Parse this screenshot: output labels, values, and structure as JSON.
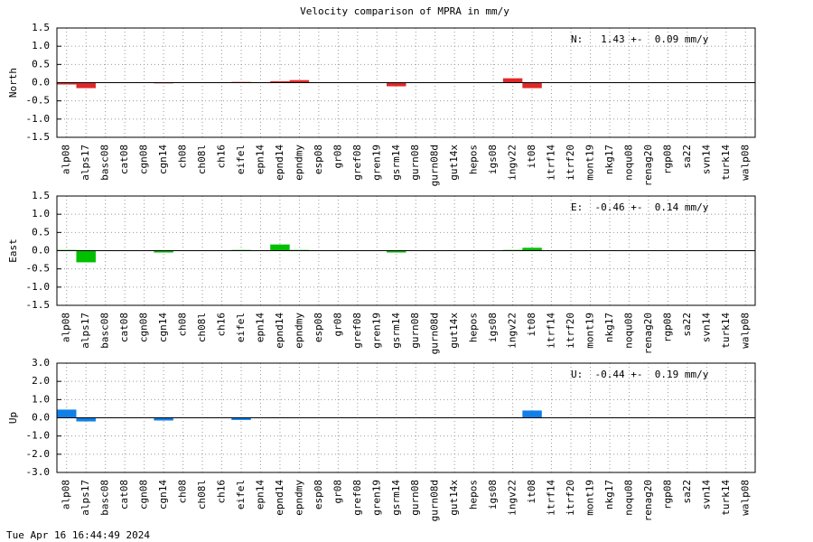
{
  "title": "Velocity comparison of MPRA in mm/y",
  "timestamp": "Tue Apr 16 16:44:49 2024",
  "chart_data": [
    {
      "type": "bar",
      "ylabel": "North",
      "annotation": "N:   1.43 +-  0.09 mm/y",
      "color": "#e02828",
      "grid": true,
      "categories": [
        "alp08",
        "alps17",
        "basc08",
        "cat08",
        "cgn08",
        "cgn14",
        "ch08",
        "ch08l",
        "ch16",
        "eifel",
        "epn14",
        "epnd14",
        "epndmy",
        "esp08",
        "gr08",
        "gref08",
        "gren19",
        "gsrm14",
        "gurn08",
        "gurn08d",
        "gut14x",
        "hepos",
        "igs08",
        "ingv22",
        "it08",
        "itrf14",
        "itrf20",
        "mont19",
        "nkg17",
        "noqu08",
        "renag20",
        "rgp08",
        "sa22",
        "svn14",
        "turk14",
        "walp08"
      ],
      "values": [
        -0.05,
        -0.15,
        0,
        0,
        0,
        -0.02,
        0,
        0,
        0,
        0.02,
        0,
        0.04,
        0.07,
        0,
        0,
        0,
        0,
        -0.1,
        0,
        0,
        0,
        0,
        0,
        0.12,
        -0.15,
        0,
        0,
        0,
        0,
        0,
        0,
        0,
        0,
        0,
        0,
        0
      ],
      "ylim": [
        -1.5,
        1.5
      ],
      "yticks": [
        -1.5,
        {
          "value": -1,
          "label": "-1.0"
        },
        -0.5,
        {
          "value": 0,
          "label": "0.0"
        },
        0.5,
        {
          "value": 1,
          "label": "1.0"
        },
        1.5
      ]
    },
    {
      "type": "bar",
      "ylabel": "East",
      "annotation": "E:  -0.46 +-  0.14 mm/y",
      "color": "#00c000",
      "grid": true,
      "categories": [
        "alp08",
        "alps17",
        "basc08",
        "cat08",
        "cgn08",
        "cgn14",
        "ch08",
        "ch08l",
        "ch16",
        "eifel",
        "epn14",
        "epnd14",
        "epndmy",
        "esp08",
        "gr08",
        "gref08",
        "gren19",
        "gsrm14",
        "gurn08",
        "gurn08d",
        "gut14x",
        "hepos",
        "igs08",
        "ingv22",
        "it08",
        "itrf14",
        "itrf20",
        "mont19",
        "nkg17",
        "noqu08",
        "renag20",
        "rgp08",
        "sa22",
        "svn14",
        "turk14",
        "walp08"
      ],
      "values": [
        0.02,
        -0.32,
        0,
        0,
        0,
        -0.05,
        0,
        0,
        0,
        0.02,
        0,
        0.17,
        0.02,
        0,
        0,
        0,
        0,
        -0.05,
        0,
        0,
        0,
        0,
        0,
        0.02,
        0.08,
        0,
        0,
        0,
        0,
        0,
        0,
        0,
        0,
        0,
        0,
        0
      ],
      "ylim": [
        -1.5,
        1.5
      ],
      "yticks": [
        -1.5,
        {
          "value": -1,
          "label": "-1.0"
        },
        -0.5,
        {
          "value": 0,
          "label": "0.0"
        },
        0.5,
        {
          "value": 1,
          "label": "1.0"
        },
        1.5
      ]
    },
    {
      "type": "bar",
      "ylabel": "Up",
      "annotation": "U:  -0.44 +-  0.19 mm/y",
      "color": "#1080e8",
      "grid": true,
      "categories": [
        "alp08",
        "alps17",
        "basc08",
        "cat08",
        "cgn08",
        "cgn14",
        "ch08",
        "ch08l",
        "ch16",
        "eifel",
        "epn14",
        "epnd14",
        "epndmy",
        "esp08",
        "gr08",
        "gref08",
        "gren19",
        "gsrm14",
        "gurn08",
        "gurn08d",
        "gut14x",
        "hepos",
        "igs08",
        "ingv22",
        "it08",
        "itrf14",
        "itrf20",
        "mont19",
        "nkg17",
        "noqu08",
        "renag20",
        "rgp08",
        "sa22",
        "svn14",
        "turk14",
        "walp08"
      ],
      "values": [
        0.45,
        -0.2,
        0,
        0,
        0,
        -0.15,
        0,
        0,
        0,
        -0.12,
        0,
        0.03,
        0,
        0,
        0,
        0,
        0,
        0,
        0,
        0,
        0,
        0,
        0,
        0.03,
        0.4,
        0,
        0,
        0,
        0,
        0,
        0,
        0,
        0,
        0,
        0,
        0
      ],
      "ylim": [
        -3,
        3
      ],
      "yticks": [
        {
          "value": -3,
          "label": "-3.0"
        },
        {
          "value": -2,
          "label": "-2.0"
        },
        {
          "value": -1,
          "label": "-1.0"
        },
        {
          "value": 0,
          "label": "0.0"
        },
        {
          "value": 1,
          "label": "1.0"
        },
        {
          "value": 2,
          "label": "2.0"
        },
        {
          "value": 3,
          "label": "3.0"
        }
      ]
    }
  ]
}
